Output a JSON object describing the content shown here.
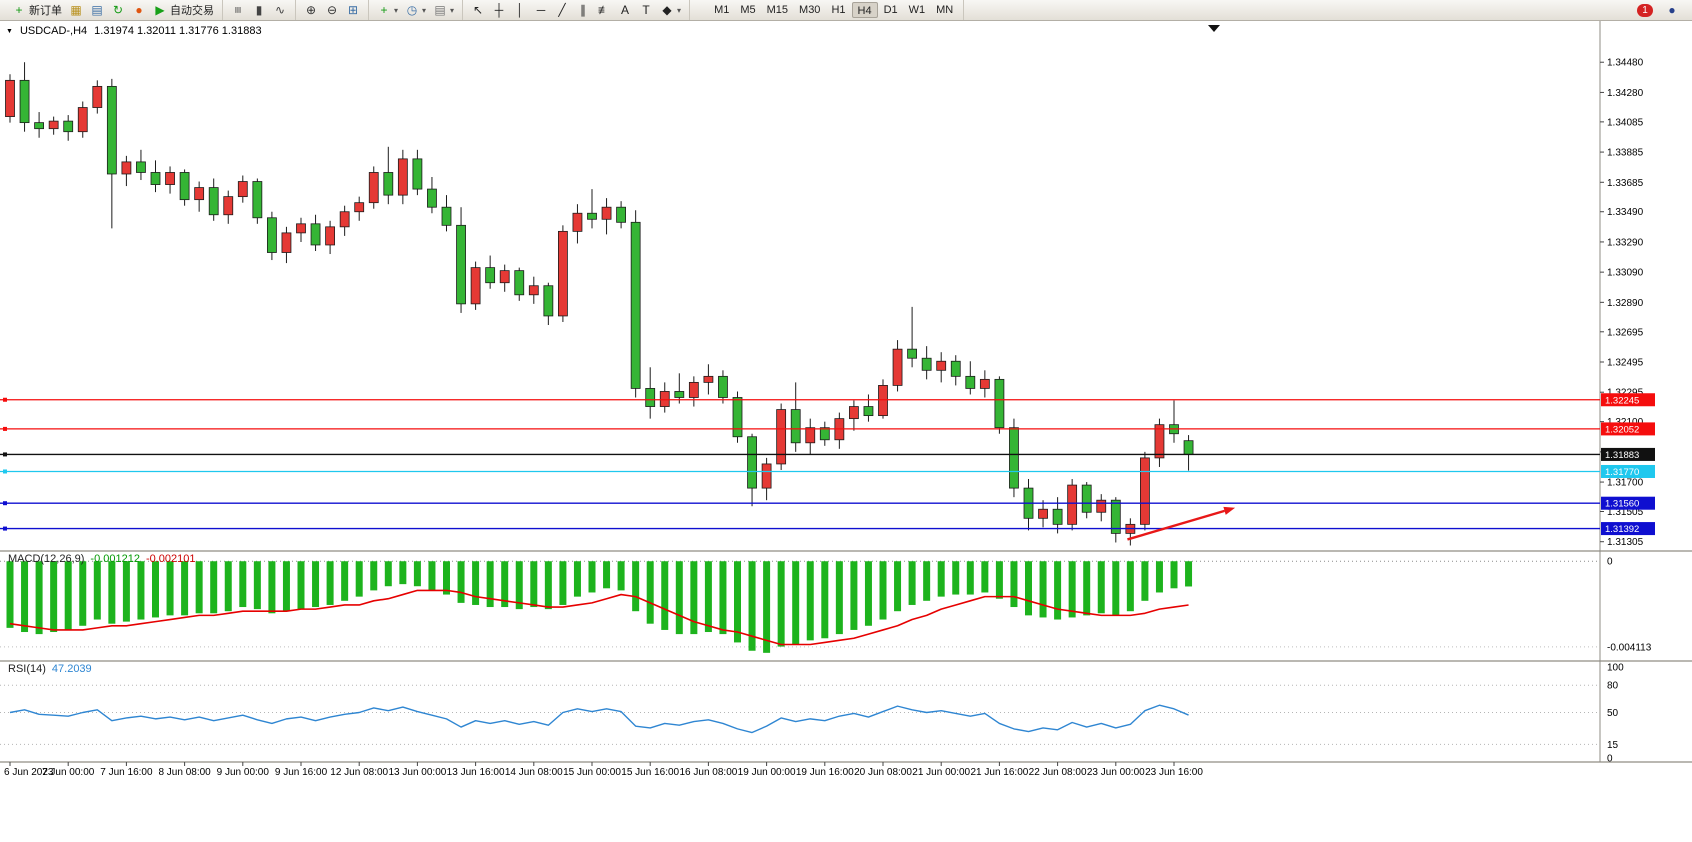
{
  "toolbar": {
    "dropdown_glyph": "▾",
    "groups": [
      {
        "items": [
          {
            "name": "new-order",
            "icon": "new-order-icon",
            "glyph": "+",
            "color": "#149a14",
            "label": "新订单"
          },
          {
            "name": "charts",
            "icon": "chart-window-icon",
            "glyph": "▦",
            "color": "#b8901c"
          },
          {
            "name": "profiles",
            "icon": "profiles-icon",
            "glyph": "▤",
            "color": "#3a6ea5"
          },
          {
            "name": "refresh",
            "icon": "refresh-icon",
            "glyph": "↻",
            "color": "#149a14"
          },
          {
            "name": "experts",
            "icon": "expert-advisors-icon",
            "glyph": "●",
            "color": "#e05510"
          },
          {
            "name": "auto-trading",
            "icon": "auto-trading-play-icon",
            "glyph": "▶",
            "color": "#18a018",
            "label": "自动交易"
          }
        ]
      },
      {
        "items": [
          {
            "name": "bar-chart",
            "icon": "bar-chart-icon",
            "glyph": "≡",
            "color": "#444",
            "rot": 90
          },
          {
            "name": "candlestick-chart",
            "icon": "candlestick-chart-icon",
            "glyph": "▮",
            "color": "#444"
          },
          {
            "name": "line-chart",
            "icon": "line-chart-icon",
            "glyph": "∿",
            "color": "#444"
          }
        ]
      },
      {
        "items": [
          {
            "name": "zoom-in",
            "icon": "zoom-in-icon",
            "glyph": "⊕",
            "color": "#333"
          },
          {
            "name": "zoom-out",
            "icon": "zoom-out-icon",
            "glyph": "⊖",
            "color": "#333"
          },
          {
            "name": "tile-windows",
            "icon": "tile-windows-icon",
            "glyph": "⊞",
            "color": "#3a6ea5"
          }
        ]
      },
      {
        "items": [
          {
            "name": "indicators",
            "icon": "add-indicator-icon",
            "glyph": "+",
            "color": "#149a14",
            "dropdown": true
          },
          {
            "name": "periods",
            "icon": "clock-icon",
            "glyph": "◷",
            "color": "#3a6ea5",
            "dropdown": true
          },
          {
            "name": "templates",
            "icon": "template-icon",
            "glyph": "▤",
            "color": "#777",
            "dropdown": true
          }
        ]
      },
      {
        "items": [
          {
            "name": "cursor",
            "icon": "cursor-icon",
            "glyph": "↖",
            "color": "#222"
          },
          {
            "name": "crosshair",
            "icon": "crosshair-icon",
            "glyph": "┼",
            "color": "#222"
          },
          {
            "name": "vertical-line",
            "icon": "vertical-line-icon",
            "glyph": "│",
            "color": "#222"
          },
          {
            "name": "horizontal-line",
            "icon": "horizontal-line-icon",
            "glyph": "─",
            "color": "#222"
          },
          {
            "name": "trendline",
            "icon": "trendline-icon",
            "glyph": "╱",
            "color": "#222"
          },
          {
            "name": "channel",
            "icon": "channel-icon",
            "glyph": "∥",
            "color": "#222"
          },
          {
            "name": "fibonacci",
            "icon": "fibonacci-icon",
            "glyph": "≢",
            "color": "#222"
          },
          {
            "name": "text",
            "icon": "text-icon",
            "glyph": "A",
            "color": "#222"
          },
          {
            "name": "text-label",
            "icon": "text-label-icon",
            "glyph": "T",
            "color": "#222"
          },
          {
            "name": "shapes",
            "icon": "arrows-shapes-icon",
            "glyph": "◆",
            "color": "#222",
            "dropdown": true
          }
        ]
      },
      {
        "type": "timeframes",
        "active": "H4",
        "items": [
          "M1",
          "M5",
          "M15",
          "M30",
          "H1",
          "H4",
          "D1",
          "W1",
          "MN"
        ]
      }
    ],
    "right": [
      {
        "name": "notifications",
        "badge": "1",
        "color": "#d42222"
      },
      {
        "name": "community",
        "icon": "community-icon",
        "glyph": "●",
        "color": "#27408b"
      }
    ]
  },
  "chart": {
    "menu_glyph": "▼",
    "title": "USDCAD-,H4",
    "ohlc": "1.31974 1.32011 1.31776 1.31883"
  },
  "chart_data": {
    "type": "candlestick",
    "symbol": "USDCAD-",
    "period": "H4",
    "colors": {
      "up": "#e53935",
      "down": "#35b535",
      "wick": "#1c1c1c",
      "macd_bar": "#1db31d",
      "macd_signal": "#e60000",
      "rsi_line": "#2f86d2"
    },
    "label_every": 4,
    "x_labels": [
      "6 Jun 2023",
      "7 Jun 00:00",
      "7 Jun 16:00",
      "8 Jun 08:00",
      "9 Jun 00:00",
      "9 Jun 16:00",
      "12 Jun 08:00",
      "13 Jun 00:00",
      "13 Jun 16:00",
      "14 Jun 08:00",
      "15 Jun 00:00",
      "15 Jun 16:00",
      "16 Jun 08:00",
      "19 Jun 00:00",
      "19 Jun 16:00",
      "20 Jun 08:00",
      "21 Jun 00:00",
      "21 Jun 16:00",
      "22 Jun 08:00",
      "23 Jun 00:00",
      "23 Jun 16:00"
    ],
    "price_axis": {
      "ticks": [
        "1.34480",
        "1.34280",
        "1.34085",
        "1.33885",
        "1.33685",
        "1.33490",
        "1.33290",
        "1.33090",
        "1.32890",
        "1.32695",
        "1.32495",
        "1.32295",
        "1.32100",
        "1.31900",
        "1.31700",
        "1.31505",
        "1.31305"
      ]
    },
    "candles": [
      [
        1.3412,
        1.344,
        1.3408,
        1.3436
      ],
      [
        1.3436,
        1.3448,
        1.3402,
        1.3408
      ],
      [
        1.3408,
        1.3415,
        1.3398,
        1.3404
      ],
      [
        1.3404,
        1.3412,
        1.34,
        1.3409
      ],
      [
        1.3409,
        1.3413,
        1.3396,
        1.3402
      ],
      [
        1.3402,
        1.3422,
        1.3398,
        1.3418
      ],
      [
        1.3418,
        1.3436,
        1.3414,
        1.3432
      ],
      [
        1.3432,
        1.3437,
        1.3338,
        1.3374
      ],
      [
        1.3374,
        1.3386,
        1.3366,
        1.3382
      ],
      [
        1.3382,
        1.339,
        1.337,
        1.3375
      ],
      [
        1.3375,
        1.3383,
        1.3362,
        1.3367
      ],
      [
        1.3367,
        1.3379,
        1.3361,
        1.3375
      ],
      [
        1.3375,
        1.3377,
        1.3353,
        1.3357
      ],
      [
        1.3357,
        1.3369,
        1.3349,
        1.3365
      ],
      [
        1.3365,
        1.3371,
        1.3343,
        1.3347
      ],
      [
        1.3347,
        1.3363,
        1.3341,
        1.3359
      ],
      [
        1.3359,
        1.3373,
        1.3355,
        1.3369
      ],
      [
        1.3369,
        1.3371,
        1.3341,
        1.3345
      ],
      [
        1.3345,
        1.3349,
        1.3317,
        1.3322
      ],
      [
        1.3322,
        1.3339,
        1.3315,
        1.3335
      ],
      [
        1.3335,
        1.3345,
        1.3329,
        1.3341
      ],
      [
        1.3341,
        1.3347,
        1.3323,
        1.3327
      ],
      [
        1.3327,
        1.3343,
        1.3321,
        1.3339
      ],
      [
        1.3339,
        1.3353,
        1.3333,
        1.3349
      ],
      [
        1.3349,
        1.3359,
        1.3343,
        1.3355
      ],
      [
        1.3355,
        1.3379,
        1.3351,
        1.3375
      ],
      [
        1.3375,
        1.3392,
        1.3354,
        1.336
      ],
      [
        1.336,
        1.339,
        1.3354,
        1.3384
      ],
      [
        1.3384,
        1.339,
        1.336,
        1.3364
      ],
      [
        1.3364,
        1.3372,
        1.3348,
        1.3352
      ],
      [
        1.3352,
        1.336,
        1.3336,
        1.334
      ],
      [
        1.334,
        1.3352,
        1.3282,
        1.3288
      ],
      [
        1.3288,
        1.3316,
        1.3284,
        1.3312
      ],
      [
        1.3312,
        1.332,
        1.3298,
        1.3302
      ],
      [
        1.3302,
        1.3314,
        1.3296,
        1.331
      ],
      [
        1.331,
        1.3312,
        1.329,
        1.3294
      ],
      [
        1.3294,
        1.3306,
        1.3288,
        1.33
      ],
      [
        1.33,
        1.3302,
        1.3274,
        1.328
      ],
      [
        1.328,
        1.334,
        1.3276,
        1.3336
      ],
      [
        1.3336,
        1.3354,
        1.3328,
        1.3348
      ],
      [
        1.3348,
        1.3364,
        1.3338,
        1.3344
      ],
      [
        1.3344,
        1.3358,
        1.3334,
        1.3352
      ],
      [
        1.3352,
        1.3356,
        1.3338,
        1.3342
      ],
      [
        1.3342,
        1.335,
        1.3226,
        1.3232
      ],
      [
        1.3232,
        1.3246,
        1.3212,
        1.322
      ],
      [
        1.322,
        1.3236,
        1.3216,
        1.323
      ],
      [
        1.323,
        1.3242,
        1.3222,
        1.3226
      ],
      [
        1.3226,
        1.324,
        1.322,
        1.3236
      ],
      [
        1.3236,
        1.3248,
        1.3228,
        1.324
      ],
      [
        1.324,
        1.3244,
        1.3222,
        1.3226
      ],
      [
        1.3226,
        1.323,
        1.3196,
        1.32
      ],
      [
        1.32,
        1.3202,
        1.3154,
        1.3166
      ],
      [
        1.3166,
        1.3186,
        1.3158,
        1.3182
      ],
      [
        1.3182,
        1.3222,
        1.3178,
        1.3218
      ],
      [
        1.3218,
        1.3236,
        1.319,
        1.3196
      ],
      [
        1.3196,
        1.3212,
        1.3188,
        1.3206
      ],
      [
        1.3206,
        1.321,
        1.3194,
        1.3198
      ],
      [
        1.3198,
        1.3216,
        1.3192,
        1.3212
      ],
      [
        1.3212,
        1.3224,
        1.3204,
        1.322
      ],
      [
        1.322,
        1.3228,
        1.321,
        1.3214
      ],
      [
        1.3214,
        1.3238,
        1.3212,
        1.3234
      ],
      [
        1.3234,
        1.3264,
        1.323,
        1.3258
      ],
      [
        1.3258,
        1.3286,
        1.3246,
        1.3252
      ],
      [
        1.3252,
        1.326,
        1.3238,
        1.3244
      ],
      [
        1.3244,
        1.3256,
        1.3236,
        1.325
      ],
      [
        1.325,
        1.3254,
        1.3234,
        1.324
      ],
      [
        1.324,
        1.325,
        1.3228,
        1.3232
      ],
      [
        1.3232,
        1.3244,
        1.3226,
        1.3238
      ],
      [
        1.3238,
        1.324,
        1.3202,
        1.3206
      ],
      [
        1.3206,
        1.3212,
        1.316,
        1.3166
      ],
      [
        1.3166,
        1.3172,
        1.3138,
        1.3146
      ],
      [
        1.3146,
        1.3158,
        1.314,
        1.3152
      ],
      [
        1.3152,
        1.316,
        1.3136,
        1.3142
      ],
      [
        1.3142,
        1.3172,
        1.3138,
        1.3168
      ],
      [
        1.3168,
        1.317,
        1.3146,
        1.315
      ],
      [
        1.315,
        1.3162,
        1.3144,
        1.3158
      ],
      [
        1.3158,
        1.316,
        1.313,
        1.3136
      ],
      [
        1.3136,
        1.3146,
        1.3128,
        1.3142
      ],
      [
        1.3142,
        1.319,
        1.3138,
        1.3186
      ],
      [
        1.3186,
        1.3212,
        1.318,
        1.3208
      ],
      [
        1.3208,
        1.3224,
        1.3196,
        1.3202
      ],
      [
        1.31974,
        1.32011,
        1.31776,
        1.31883
      ]
    ],
    "levels": [
      {
        "price": 1.32245,
        "badge": "1.32245",
        "color": "#f50d0d"
      },
      {
        "price": 1.32052,
        "badge": "1.32052",
        "color": "#f50d0d"
      },
      {
        "price": 1.31883,
        "badge": "1.31883",
        "color": "#111111"
      },
      {
        "price": 1.3177,
        "badge": "1.31770",
        "color": "#1fc8ee"
      },
      {
        "price": 1.3156,
        "badge": "1.31560",
        "color": "#0f0fd0"
      },
      {
        "price": 1.31392,
        "badge": "1.31392",
        "color": "#0f0fd0"
      }
    ],
    "arrow": {
      "from": {
        "index": 76.8,
        "price": 1.3132
      },
      "to": {
        "index": 84.2,
        "price": 1.3153
      },
      "color": "#e81818"
    },
    "macd": {
      "label": "MACD(12,26,9)",
      "value": "-0.001212",
      "signal_value": "-0.002101",
      "axis": [
        "0",
        "-0.004113"
      ],
      "histogram": [
        -0.0032,
        -0.0034,
        -0.0035,
        -0.0034,
        -0.0033,
        -0.0031,
        -0.0028,
        -0.003,
        -0.0029,
        -0.0028,
        -0.0027,
        -0.0026,
        -0.0026,
        -0.0025,
        -0.0025,
        -0.0024,
        -0.0022,
        -0.0023,
        -0.0025,
        -0.0024,
        -0.0023,
        -0.0022,
        -0.0021,
        -0.0019,
        -0.0017,
        -0.0014,
        -0.0012,
        -0.0011,
        -0.0012,
        -0.0014,
        -0.0016,
        -0.002,
        -0.0021,
        -0.0022,
        -0.0022,
        -0.0023,
        -0.0022,
        -0.0023,
        -0.0021,
        -0.0017,
        -0.0015,
        -0.0013,
        -0.0014,
        -0.0024,
        -0.003,
        -0.0033,
        -0.0035,
        -0.0035,
        -0.0034,
        -0.0035,
        -0.0039,
        -0.0043,
        -0.0044,
        -0.0041,
        -0.004,
        -0.0038,
        -0.0037,
        -0.0035,
        -0.0033,
        -0.0031,
        -0.0028,
        -0.0024,
        -0.0021,
        -0.0019,
        -0.0017,
        -0.0016,
        -0.0016,
        -0.0015,
        -0.0018,
        -0.0022,
        -0.0026,
        -0.0027,
        -0.0028,
        -0.0027,
        -0.0026,
        -0.0025,
        -0.0026,
        -0.0024,
        -0.0019,
        -0.0015,
        -0.0013,
        -0.001212
      ],
      "signal": [
        -0.003,
        -0.0031,
        -0.0032,
        -0.0033,
        -0.0033,
        -0.0033,
        -0.0032,
        -0.0031,
        -0.0031,
        -0.003,
        -0.0029,
        -0.0028,
        -0.0027,
        -0.0026,
        -0.0026,
        -0.0025,
        -0.0024,
        -0.0024,
        -0.0024,
        -0.0024,
        -0.0023,
        -0.0023,
        -0.0022,
        -0.0021,
        -0.0021,
        -0.0019,
        -0.0018,
        -0.0016,
        -0.0014,
        -0.0014,
        -0.0014,
        -0.0015,
        -0.0017,
        -0.0018,
        -0.0019,
        -0.002,
        -0.0021,
        -0.0022,
        -0.0022,
        -0.0021,
        -0.002,
        -0.0018,
        -0.0016,
        -0.0017,
        -0.002,
        -0.0023,
        -0.0026,
        -0.0029,
        -0.0031,
        -0.0033,
        -0.0034,
        -0.0036,
        -0.0038,
        -0.004,
        -0.004,
        -0.004,
        -0.0039,
        -0.0038,
        -0.0037,
        -0.0035,
        -0.0033,
        -0.0031,
        -0.0028,
        -0.0026,
        -0.0023,
        -0.0021,
        -0.0019,
        -0.0017,
        -0.0017,
        -0.0017,
        -0.0019,
        -0.0021,
        -0.0023,
        -0.0024,
        -0.0025,
        -0.0026,
        -0.0026,
        -0.0026,
        -0.0025,
        -0.0023,
        -0.0022,
        -0.002101
      ]
    },
    "rsi": {
      "label": "RSI(14)",
      "value": "47.2039",
      "axis": [
        "100",
        "80",
        "50",
        "15",
        "0"
      ],
      "levels": [
        80,
        50,
        15
      ],
      "values": [
        50,
        53,
        48,
        47,
        46,
        50,
        53,
        41,
        44,
        46,
        43,
        45,
        42,
        45,
        41,
        44,
        47,
        42,
        38,
        43,
        45,
        41,
        45,
        48,
        50,
        55,
        52,
        56,
        51,
        47,
        43,
        34,
        41,
        38,
        41,
        37,
        40,
        36,
        50,
        54,
        51,
        54,
        51,
        35,
        33,
        38,
        36,
        40,
        42,
        38,
        32,
        28,
        35,
        44,
        40,
        43,
        41,
        46,
        49,
        45,
        51,
        57,
        53,
        50,
        52,
        49,
        46,
        49,
        38,
        32,
        29,
        33,
        31,
        39,
        34,
        38,
        33,
        37,
        52,
        58,
        54,
        47.2039
      ]
    }
  }
}
